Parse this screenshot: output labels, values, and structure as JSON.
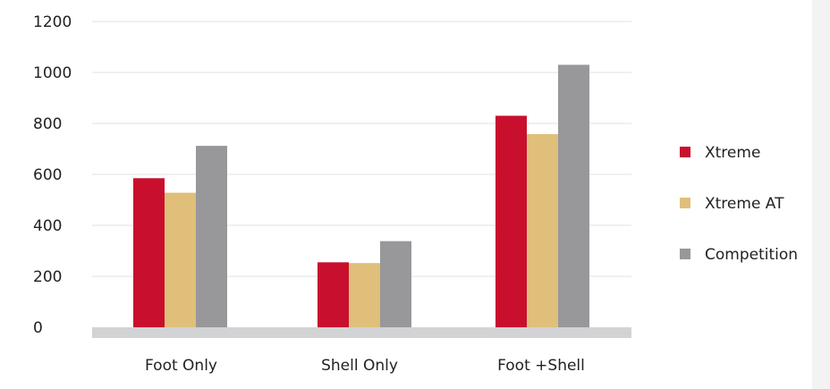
{
  "chart_data": {
    "type": "bar",
    "categories": [
      "Foot Only",
      "Shell Only",
      "Foot +Shell"
    ],
    "series": [
      {
        "name": "Xtreme",
        "color": "#c8102e",
        "values": [
          585,
          255,
          830
        ]
      },
      {
        "name": "Xtreme AT",
        "color": "#dfbf7a",
        "values": [
          528,
          252,
          758
        ]
      },
      {
        "name": "Competition",
        "color": "#98989b",
        "values": [
          712,
          338,
          1030
        ]
      }
    ],
    "yticks": [
      "0",
      "200",
      "400",
      "600",
      "800",
      "1000",
      "1200"
    ],
    "ylim": [
      0,
      1200
    ],
    "grid": true,
    "legend_position": "right",
    "baseline_color": "#d2d3d5"
  }
}
